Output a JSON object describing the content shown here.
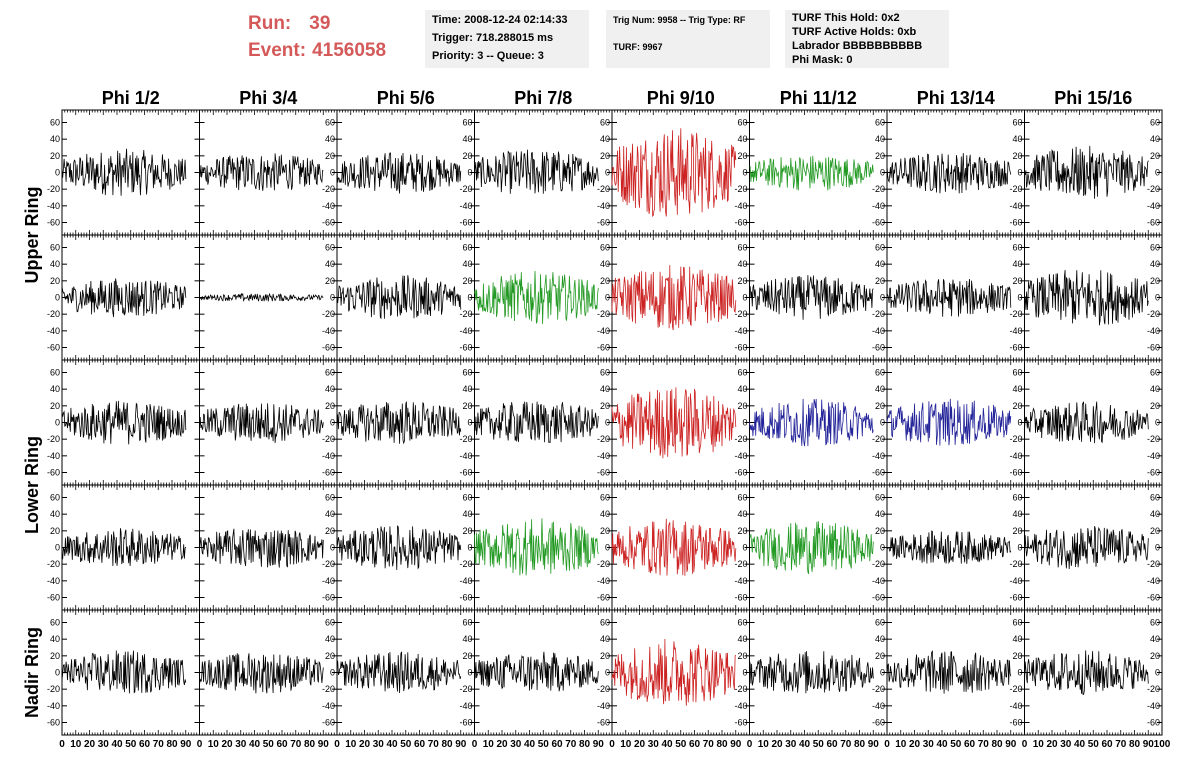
{
  "header": {
    "run_label": "Run:",
    "run_value": "39",
    "event_label": "Event:",
    "event_value": "4156058",
    "time_box": [
      "Time: 2008-12-24 02:14:33",
      "Trigger: 718.288015 ms",
      "Priority: 3 -- Queue: 3"
    ],
    "trig_box": [
      "Trig Num: 9958 -- Trig Type: RF",
      "TURF: 9967"
    ],
    "turf_box": [
      "TURF This Hold: 0x2",
      "TURF Active Holds: 0xb",
      "Labrador BBBBBBBBBB",
      "Phi Mask: 0"
    ]
  },
  "chart_data": {
    "type": "line",
    "columns": [
      "Phi 1/2",
      "Phi 3/4",
      "Phi 5/6",
      "Phi 7/8",
      "Phi 9/10",
      "Phi 11/12",
      "Phi 13/14",
      "Phi 15/16"
    ],
    "row_groups": [
      {
        "label": "Upper Ring",
        "rows": [
          0,
          1
        ]
      },
      {
        "label": "Lower Ring",
        "rows": [
          2,
          3
        ]
      },
      {
        "label": "Nadir Ring",
        "rows": [
          4
        ]
      }
    ],
    "xlim": [
      0,
      100
    ],
    "x_samples": 90,
    "ylim": [
      -75,
      75
    ],
    "y_ticks": [
      -60,
      -40,
      -20,
      0,
      20,
      40,
      60
    ],
    "x_ticks": [
      0,
      10,
      20,
      30,
      40,
      50,
      60,
      70,
      80,
      90
    ],
    "last_x_tick": 100,
    "colors": {
      "black": "#000000",
      "red": "#cc2222",
      "green": "#229922",
      "blue": "#222299"
    },
    "panel_colors": [
      [
        "black",
        "black",
        "black",
        "black",
        "red",
        "green",
        "black",
        "black"
      ],
      [
        "black",
        "black",
        "black",
        "green",
        "red",
        "black",
        "black",
        "black"
      ],
      [
        "black",
        "black",
        "black",
        "black",
        "red",
        "blue",
        "blue",
        "black"
      ],
      [
        "black",
        "black",
        "black",
        "green",
        "red",
        "green",
        "black",
        "black"
      ],
      [
        "black",
        "black",
        "black",
        "black",
        "red",
        "black",
        "black",
        "black"
      ]
    ],
    "panel_amplitudes": [
      [
        18,
        15,
        16,
        18,
        35,
        14,
        16,
        20
      ],
      [
        15,
        3,
        17,
        20,
        25,
        17,
        15,
        22
      ],
      [
        17,
        16,
        17,
        17,
        28,
        18,
        18,
        16
      ],
      [
        15,
        16,
        17,
        22,
        22,
        20,
        13,
        17
      ],
      [
        17,
        16,
        16,
        16,
        26,
        17,
        17,
        17
      ]
    ]
  }
}
